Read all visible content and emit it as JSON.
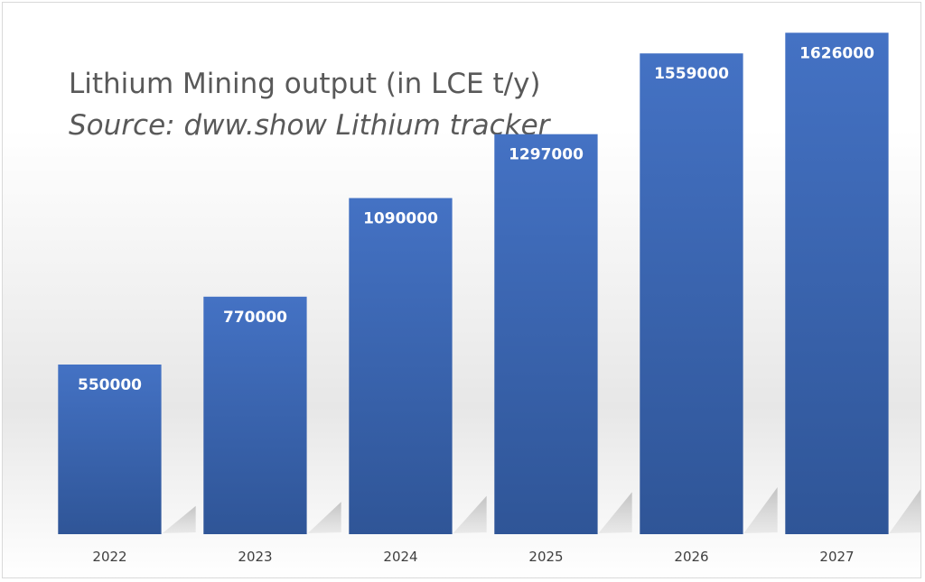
{
  "chart_data": {
    "type": "bar",
    "title": "Lithium Mining output (in LCE t/y)",
    "subtitle": "Source: dww.show Lithium tracker",
    "categories": [
      "2022",
      "2023",
      "2024",
      "2025",
      "2026",
      "2027"
    ],
    "values": [
      550000,
      770000,
      1090000,
      1297000,
      1559000,
      1626000
    ],
    "data_labels": [
      "550000",
      "770000",
      "1090000",
      "1297000",
      "1559000",
      "1626000"
    ],
    "xlabel": "",
    "ylabel": "",
    "ylim": [
      0,
      1700000
    ],
    "grid": false,
    "legend": "none",
    "colors": {
      "bar_top": "#4472c4",
      "bar_bottom": "#2f5597",
      "text": "#595959",
      "background_top": "#ffffff",
      "background_mid": "#ececec"
    }
  }
}
